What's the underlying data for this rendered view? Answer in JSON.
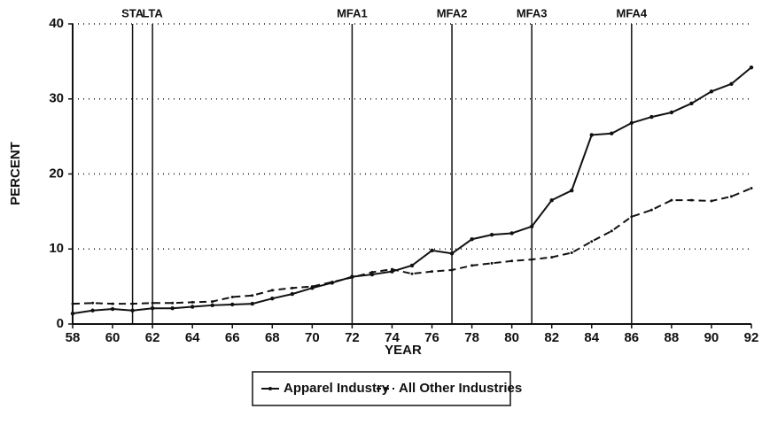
{
  "chart_data": {
    "type": "line",
    "x": [
      58,
      59,
      60,
      61,
      62,
      63,
      64,
      65,
      66,
      67,
      68,
      69,
      70,
      71,
      72,
      73,
      74,
      75,
      76,
      77,
      78,
      79,
      80,
      81,
      82,
      83,
      84,
      85,
      86,
      87,
      88,
      89,
      90,
      91,
      92
    ],
    "series": [
      {
        "name": "Apparel Industry",
        "color": "#111111",
        "style": "solid",
        "values": [
          1.4,
          1.8,
          2.0,
          1.8,
          2.1,
          2.1,
          2.3,
          2.5,
          2.6,
          2.7,
          3.4,
          4.0,
          4.8,
          5.5,
          6.3,
          6.6,
          7.0,
          7.8,
          9.8,
          9.4,
          11.3,
          11.9,
          12.1,
          13.0,
          16.5,
          17.8,
          25.2,
          25.4,
          26.8,
          27.6,
          28.2,
          29.4,
          31.0,
          32.0,
          34.2
        ]
      },
      {
        "name": "All Other Industries",
        "color": "#111111",
        "style": "dashed",
        "values": [
          2.7,
          2.8,
          2.7,
          2.7,
          2.8,
          2.8,
          2.9,
          3.0,
          3.6,
          3.8,
          4.5,
          4.8,
          5.0,
          5.6,
          6.2,
          6.9,
          7.3,
          6.7,
          7.0,
          7.2,
          7.8,
          8.1,
          8.4,
          8.6,
          8.9,
          9.5,
          11.0,
          12.4,
          14.3,
          15.2,
          16.5,
          16.5,
          16.4,
          17.0,
          18.1
        ]
      }
    ],
    "xlabel": "YEAR",
    "ylabel": "PERCENT",
    "xlim": [
      58,
      92
    ],
    "xticks": [
      58,
      60,
      62,
      64,
      66,
      68,
      70,
      72,
      74,
      76,
      78,
      80,
      82,
      84,
      86,
      88,
      90,
      92
    ],
    "ylim": [
      0,
      40
    ],
    "yticks": [
      0,
      10,
      20,
      30,
      40
    ],
    "grid": true,
    "events": [
      {
        "label": "STA",
        "x": 61
      },
      {
        "label": "LTA",
        "x": 62
      },
      {
        "label": "MFA1",
        "x": 72
      },
      {
        "label": "MFA2",
        "x": 77
      },
      {
        "label": "MFA3",
        "x": 81
      },
      {
        "label": "MFA4",
        "x": 86
      }
    ],
    "legend": "bottom"
  }
}
